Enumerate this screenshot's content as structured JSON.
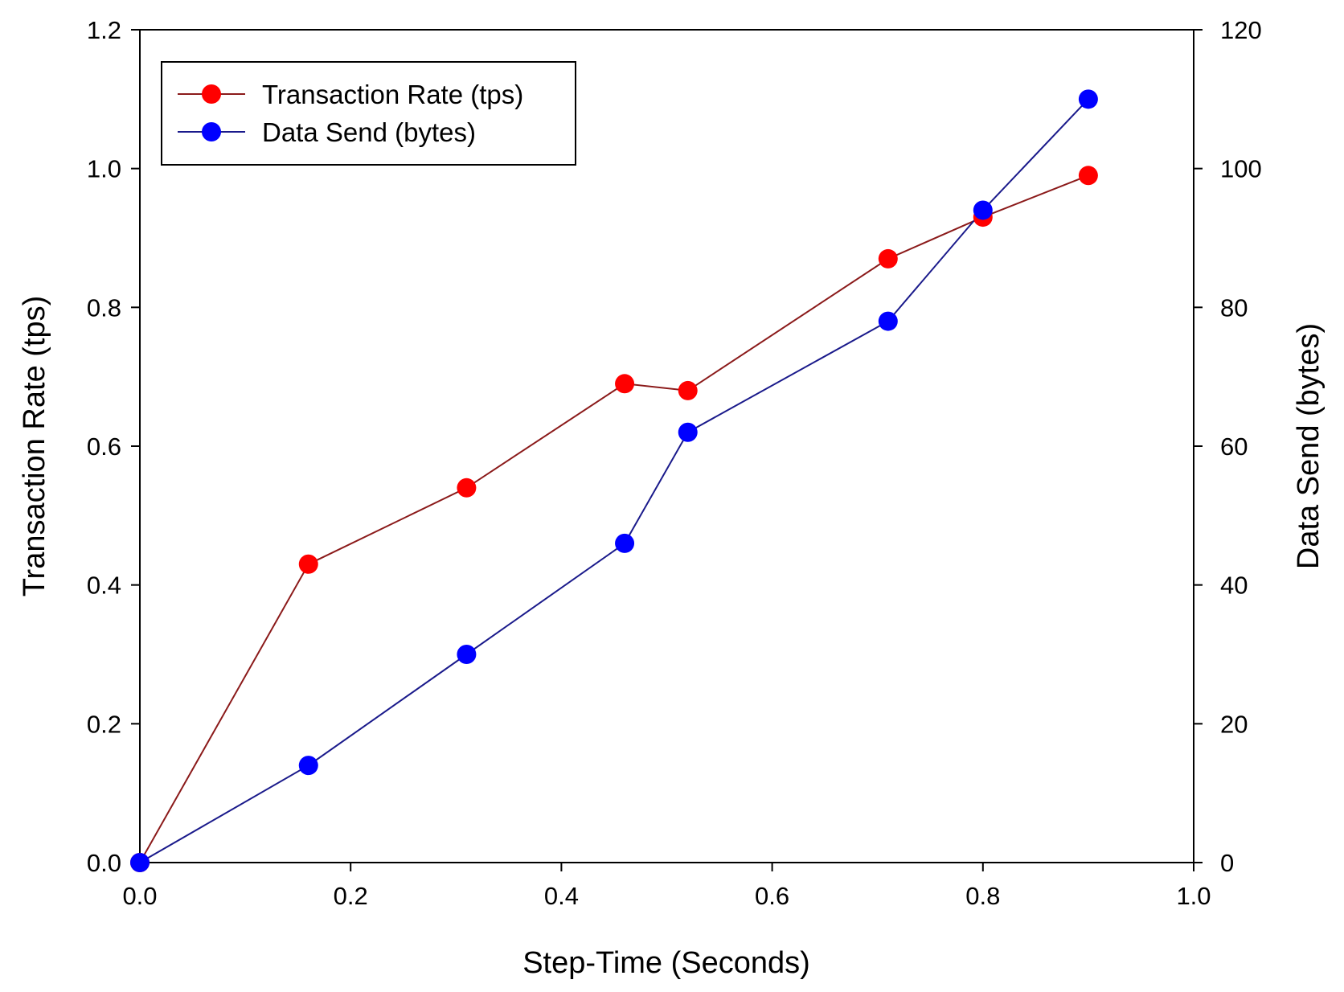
{
  "chart_data": {
    "type": "line",
    "title": "",
    "xlabel": "Step-Time (Seconds)",
    "ylabel": "Transaction Rate (tps)",
    "y2label": "Data Send (bytes)",
    "xlim": [
      0.0,
      1.0
    ],
    "ylim": [
      0.0,
      1.2
    ],
    "y2lim": [
      0,
      120
    ],
    "x_ticks": [
      "0.0",
      "0.2",
      "0.4",
      "0.6",
      "0.8",
      "1.0"
    ],
    "y_ticks": [
      "0.0",
      "0.2",
      "0.4",
      "0.6",
      "0.8",
      "1.0",
      "1.2"
    ],
    "y2_ticks": [
      "0",
      "20",
      "40",
      "60",
      "80",
      "100",
      "120"
    ],
    "grid": false,
    "legend_position": "top-left",
    "series": [
      {
        "name": "Transaction Rate (tps)",
        "axis": "left",
        "line_color": "#8b1a1a",
        "marker_color": "#ff0000",
        "x": [
          0.0,
          0.16,
          0.31,
          0.46,
          0.52,
          0.71,
          0.8,
          0.9
        ],
        "values": [
          0.0,
          0.43,
          0.54,
          0.69,
          0.68,
          0.87,
          0.93,
          0.99
        ]
      },
      {
        "name": "Data Send (bytes)",
        "axis": "right",
        "line_color": "#1a1a8b",
        "marker_color": "#0000ff",
        "x": [
          0.0,
          0.16,
          0.31,
          0.46,
          0.52,
          0.71,
          0.8,
          0.9
        ],
        "values": [
          0,
          14,
          30,
          46,
          62,
          78,
          94,
          110
        ]
      }
    ]
  }
}
